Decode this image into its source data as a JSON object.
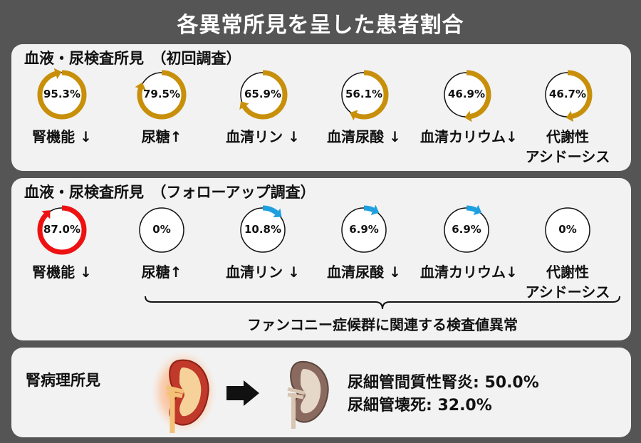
{
  "title": "各異常所見を呈した患者割合",
  "initial": {
    "heading": "血液・尿検査所見　（初回調査）",
    "items": [
      {
        "pct_text": "95.3%",
        "value": 95.3,
        "label": "腎機能 ↓",
        "label2": ""
      },
      {
        "pct_text": "79.5%",
        "value": 79.5,
        "label": "尿糖↑",
        "label2": ""
      },
      {
        "pct_text": "65.9%",
        "value": 65.9,
        "label": "血清リン ↓",
        "label2": ""
      },
      {
        "pct_text": "56.1%",
        "value": 56.1,
        "label": "血清尿酸 ↓",
        "label2": ""
      },
      {
        "pct_text": "46.9%",
        "value": 46.9,
        "label": "血清カリウム↓",
        "label2": ""
      },
      {
        "pct_text": "46.7%",
        "value": 46.7,
        "label": "代謝性",
        "label2": "アシドーシス"
      }
    ],
    "color": "#c8900a"
  },
  "followup": {
    "heading": "血液・尿検査所見　（フォローアップ調査）",
    "items": [
      {
        "pct_text": "87.0%",
        "value": 87.0,
        "label": "腎機能 ↓",
        "label2": "",
        "color": "#ee1111"
      },
      {
        "pct_text": "0%",
        "value": 0,
        "label": "尿糖↑",
        "label2": "",
        "color": "#1ea0e0"
      },
      {
        "pct_text": "10.8%",
        "value": 10.8,
        "label": "血清リン ↓",
        "label2": "",
        "color": "#1ea0e0"
      },
      {
        "pct_text": "6.9%",
        "value": 6.9,
        "label": "血清尿酸 ↓",
        "label2": "",
        "color": "#1ea0e0"
      },
      {
        "pct_text": "6.9%",
        "value": 6.9,
        "label": "血清カリウム↓",
        "label2": "",
        "color": "#1ea0e0"
      },
      {
        "pct_text": "0%",
        "value": 0,
        "label": "代謝性",
        "label2": "アシドーシス",
        "color": "#1ea0e0"
      }
    ],
    "brace_label": "ファンコニー症候群に関連する検査値異常"
  },
  "pathology": {
    "heading": "腎病理所見",
    "line1": "尿細管間質性腎炎: 50.0%",
    "line2": "尿細管壊死: 32.0%"
  },
  "colors": {
    "background": "#555555",
    "panel": "#f2f2f2",
    "initial_ring": "#c8900a",
    "followup_kidney_ring": "#ee1111",
    "followup_other_ring": "#1ea0e0"
  }
}
